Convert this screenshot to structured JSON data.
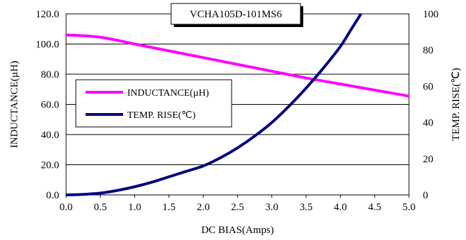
{
  "chart_data": {
    "type": "line",
    "title": "VCHA105D-101MS6",
    "xlabel": "DC BIAS(Amps)",
    "ylabel": "INDUCTANCE(µH)",
    "y2label": "TEMP. RISE(℃)",
    "xlim": [
      0,
      5
    ],
    "ylim": [
      0,
      120
    ],
    "y2lim": [
      0,
      100
    ],
    "x_ticks": [
      "0.0",
      "0.5",
      "1.0",
      "1.5",
      "2.0",
      "2.5",
      "3.0",
      "3.5",
      "4.0",
      "4.5",
      "5.0"
    ],
    "y_ticks": [
      "0.0",
      "20.0",
      "40.0",
      "60.0",
      "80.0",
      "100.0",
      "120.0"
    ],
    "y2_ticks": [
      "0",
      "20",
      "40",
      "60",
      "80",
      "100"
    ],
    "grid": "horizontal",
    "legend_position": "left-middle",
    "series": [
      {
        "name": "INDUCTANCE(µH)",
        "axis": "left",
        "color": "#ff00ff",
        "x": [
          0,
          0.25,
          0.5,
          0.75,
          1.0,
          1.5,
          2.0,
          2.5,
          3.0,
          3.5,
          4.0,
          4.5,
          5.0
        ],
        "y": [
          106,
          105.5,
          104.5,
          102.5,
          100,
          95.5,
          91,
          86.5,
          82,
          77.5,
          73.5,
          69.5,
          65.5
        ]
      },
      {
        "name": "TEMP. RISE(℃)",
        "axis": "right",
        "color": "#000080",
        "x": [
          0,
          0.25,
          0.5,
          0.75,
          1.0,
          1.25,
          1.5,
          1.75,
          2.0,
          2.25,
          2.5,
          2.75,
          3.0,
          3.25,
          3.5,
          3.75,
          4.0,
          4.15,
          4.3
        ],
        "y": [
          0,
          0.3,
          1,
          2.5,
          4.5,
          7,
          10,
          13,
          16,
          20.5,
          26,
          32.5,
          40,
          49,
          59,
          70,
          82,
          91,
          100
        ]
      }
    ]
  }
}
